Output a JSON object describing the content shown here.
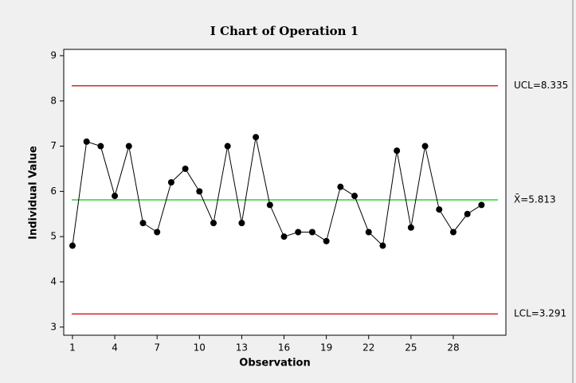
{
  "chart_data": {
    "type": "line",
    "title": "I Chart of Operation 1",
    "x_label": "Observation",
    "y_label": "Individual Value",
    "x": [
      1,
      2,
      3,
      4,
      5,
      6,
      7,
      8,
      9,
      10,
      11,
      12,
      13,
      14,
      15,
      16,
      17,
      18,
      19,
      20,
      21,
      22,
      23,
      24,
      25,
      26,
      27,
      28,
      29,
      30
    ],
    "series": [
      {
        "color": "#000000",
        "values": [
          4.8,
          7.1,
          7.0,
          5.9,
          7.0,
          5.3,
          5.1,
          6.2,
          6.5,
          6.0,
          5.3,
          7.0,
          5.3,
          7.2,
          5.7,
          5.0,
          5.1,
          5.1,
          4.9,
          6.1,
          5.9,
          5.1,
          4.8,
          6.9,
          5.2,
          7.0,
          5.6,
          5.1,
          5.5,
          5.7
        ]
      }
    ],
    "control_lines": [
      {
        "value": 8.335,
        "label": "UCL=8.335",
        "color": "#cc0000"
      },
      {
        "value": 5.813,
        "label": "X̄=5.813",
        "color": "#00cc00"
      },
      {
        "value": 3.291,
        "label": "LCL=3.291",
        "color": "#cc0000"
      }
    ],
    "xlim": [
      0.38,
      31.73
    ],
    "ylim": [
      2.82,
      9.14
    ],
    "xticks": [
      1,
      4,
      7,
      10,
      13,
      16,
      19,
      22,
      25,
      28
    ],
    "yticks": [
      3,
      4,
      5,
      6,
      7,
      8,
      9
    ]
  }
}
